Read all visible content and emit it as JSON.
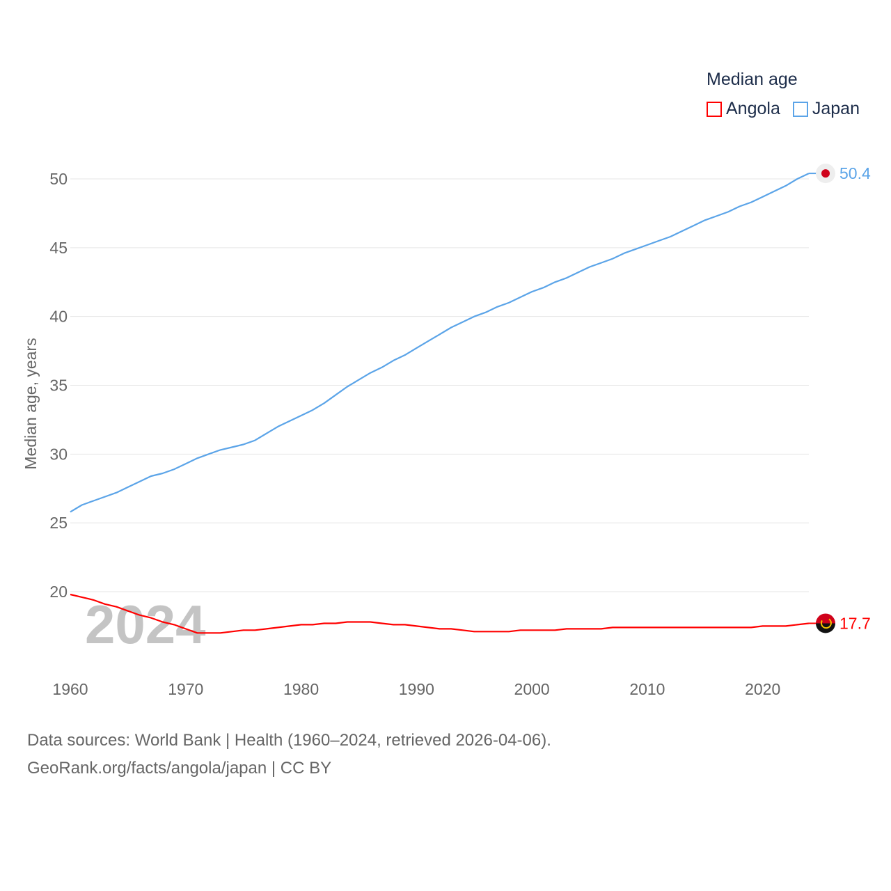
{
  "chart_data": {
    "type": "line",
    "title": "Median age",
    "ylabel": "Median age, years",
    "xlabel": "",
    "ylim": [
      15,
      50
    ],
    "xlim": [
      1960,
      2024
    ],
    "yticks": [
      20,
      25,
      30,
      35,
      40,
      45,
      50
    ],
    "xticks": [
      1960,
      1970,
      1980,
      1990,
      2000,
      2010,
      2020
    ],
    "grid": true,
    "legend_placement": "top-right",
    "year_watermark": "2024",
    "x": [
      1960,
      1961,
      1962,
      1963,
      1964,
      1965,
      1966,
      1967,
      1968,
      1969,
      1970,
      1971,
      1972,
      1973,
      1974,
      1975,
      1976,
      1977,
      1978,
      1979,
      1980,
      1981,
      1982,
      1983,
      1984,
      1985,
      1986,
      1987,
      1988,
      1989,
      1990,
      1991,
      1992,
      1993,
      1994,
      1995,
      1996,
      1997,
      1998,
      1999,
      2000,
      2001,
      2002,
      2003,
      2004,
      2005,
      2006,
      2007,
      2008,
      2009,
      2010,
      2011,
      2012,
      2013,
      2014,
      2015,
      2016,
      2017,
      2018,
      2019,
      2020,
      2021,
      2022,
      2023,
      2024
    ],
    "series": [
      {
        "name": "Angola",
        "color": "#ff0000",
        "end_label": "17.7",
        "values": [
          19.8,
          19.6,
          19.4,
          19.1,
          18.9,
          18.6,
          18.3,
          18.1,
          17.8,
          17.6,
          17.3,
          17.0,
          17.0,
          17.0,
          17.1,
          17.2,
          17.2,
          17.3,
          17.4,
          17.5,
          17.6,
          17.6,
          17.7,
          17.7,
          17.8,
          17.8,
          17.8,
          17.7,
          17.6,
          17.6,
          17.5,
          17.4,
          17.3,
          17.3,
          17.2,
          17.1,
          17.1,
          17.1,
          17.1,
          17.2,
          17.2,
          17.2,
          17.2,
          17.3,
          17.3,
          17.3,
          17.3,
          17.4,
          17.4,
          17.4,
          17.4,
          17.4,
          17.4,
          17.4,
          17.4,
          17.4,
          17.4,
          17.4,
          17.4,
          17.4,
          17.5,
          17.5,
          17.5,
          17.6,
          17.7
        ]
      },
      {
        "name": "Japan",
        "color": "#5ba4e8",
        "end_label": "50.4",
        "values": [
          25.8,
          26.3,
          26.6,
          26.9,
          27.2,
          27.6,
          28.0,
          28.4,
          28.6,
          28.9,
          29.3,
          29.7,
          30.0,
          30.3,
          30.5,
          30.7,
          31.0,
          31.5,
          32.0,
          32.4,
          32.8,
          33.2,
          33.7,
          34.3,
          34.9,
          35.4,
          35.9,
          36.3,
          36.8,
          37.2,
          37.7,
          38.2,
          38.7,
          39.2,
          39.6,
          40.0,
          40.3,
          40.7,
          41.0,
          41.4,
          41.8,
          42.1,
          42.5,
          42.8,
          43.2,
          43.6,
          43.9,
          44.2,
          44.6,
          44.9,
          45.2,
          45.5,
          45.8,
          46.2,
          46.6,
          47.0,
          47.3,
          47.6,
          48.0,
          48.3,
          48.7,
          49.1,
          49.5,
          50.0,
          50.4
        ]
      }
    ]
  },
  "footer": {
    "line1": "Data sources: World Bank | Health (1960–2024, retrieved 2026-04-06).",
    "line2": "GeoRank.org/facts/angola/japan | CC BY"
  }
}
